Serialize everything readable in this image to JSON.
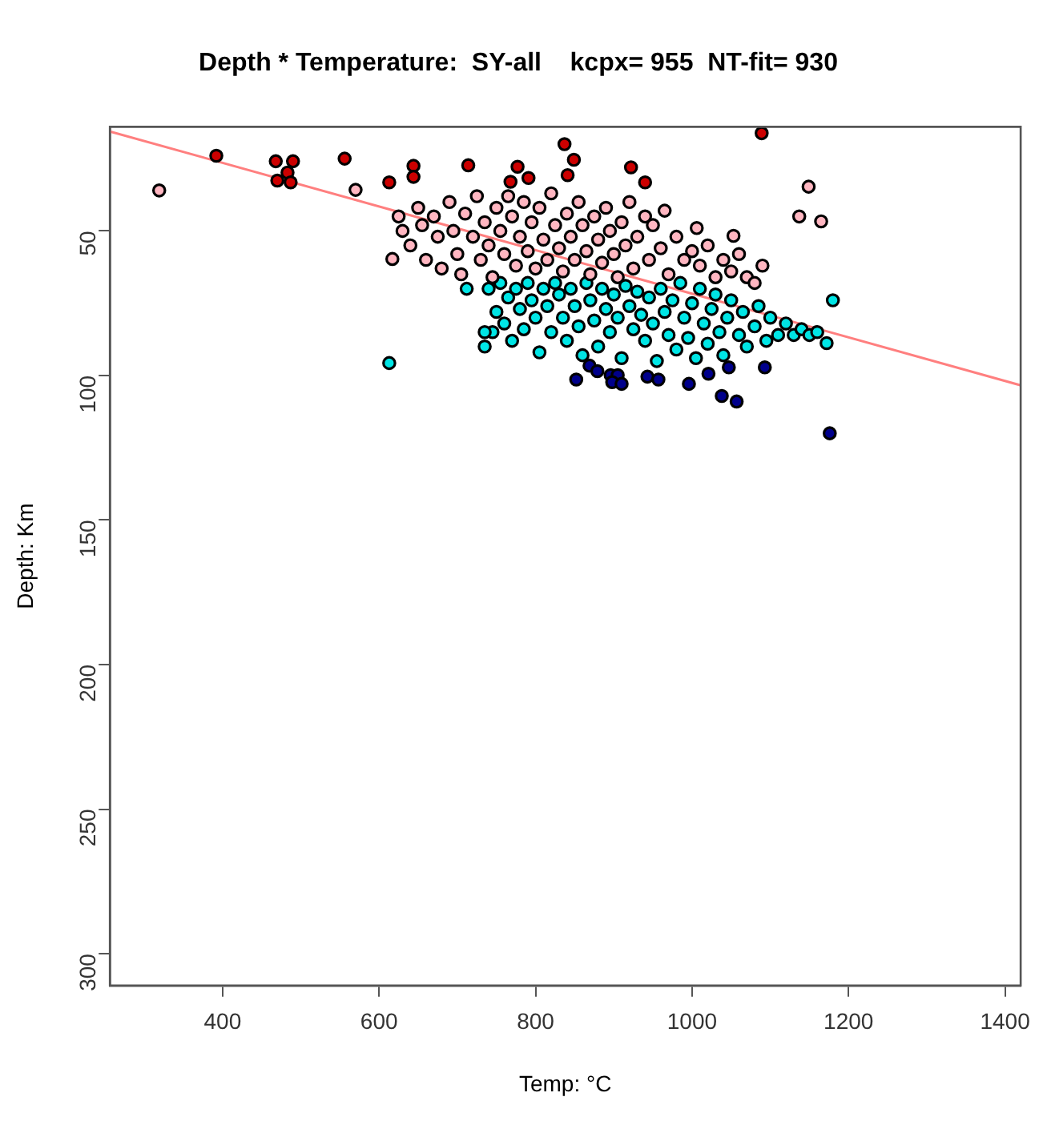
{
  "chart_data": {
    "type": "scatter",
    "title": "Depth * Temperature:  SY-all    kcpx= 955  NT-fit= 930",
    "xlabel": "Temp: °C",
    "ylabel": "Depth: Km",
    "xlim": [
      256,
      1420
    ],
    "xticks": [
      400,
      600,
      800,
      1000,
      1200,
      1400
    ],
    "ylim": [
      311,
      14
    ],
    "yticks": [
      50,
      100,
      150,
      200,
      250,
      300
    ],
    "grid": false,
    "legend": false,
    "marker": "circle",
    "series": [
      {
        "color": "#cc0000",
        "x": [
          392,
          468,
          490,
          483,
          470,
          487,
          556,
          644,
          644,
          613,
          714,
          777,
          791,
          768,
          837,
          849,
          841,
          922,
          940,
          1089
        ],
        "values": [
          24,
          25.9,
          25.9,
          29.8,
          32.6,
          33.2,
          25,
          27.5,
          31.3,
          33.2,
          27.3,
          27.8,
          31.7,
          33,
          20,
          25.4,
          30.7,
          28,
          33.2,
          16.2
        ]
      },
      {
        "color": "#ffb6c1",
        "x": [
          319,
          570,
          617,
          1149,
          1137,
          1165,
          1006,
          1053,
          625,
          630,
          640,
          650,
          655,
          660,
          670,
          675,
          680,
          690,
          695,
          700,
          705,
          710,
          720,
          725,
          730,
          735,
          740,
          745,
          750,
          755,
          760,
          765,
          770,
          775,
          780,
          785,
          790,
          795,
          800,
          805,
          810,
          815,
          820,
          825,
          830,
          835,
          840,
          845,
          850,
          855,
          860,
          865,
          870,
          875,
          880,
          885,
          890,
          895,
          900,
          905,
          910,
          915,
          920,
          925,
          930,
          940,
          945,
          950,
          960,
          965,
          970,
          980,
          990,
          1000,
          1010,
          1020,
          1030,
          1040,
          1050,
          1060,
          1070,
          1080,
          1090
        ],
        "values": [
          36,
          35.8,
          59.7,
          34.7,
          45,
          46.7,
          49,
          51.7,
          45,
          50,
          55,
          42,
          48,
          60,
          45,
          52,
          63,
          40,
          50,
          58,
          65,
          44,
          52,
          38,
          60,
          47,
          55,
          66,
          42,
          50,
          58,
          38,
          45,
          62,
          52,
          40,
          57,
          47,
          63,
          42,
          53,
          60,
          37,
          48,
          56,
          64,
          44,
          52,
          60,
          40,
          48,
          57,
          65,
          45,
          53,
          61,
          42,
          50,
          58,
          66,
          47,
          55,
          40,
          63,
          52,
          45,
          60,
          48,
          56,
          43,
          65,
          52,
          60,
          57,
          62,
          55,
          66,
          60,
          64,
          58,
          66,
          68,
          62
        ]
      },
      {
        "color": "#00e5e5",
        "x": [
          735,
          740,
          745,
          750,
          755,
          760,
          765,
          770,
          775,
          780,
          785,
          790,
          795,
          800,
          805,
          810,
          815,
          820,
          825,
          830,
          835,
          840,
          845,
          850,
          855,
          860,
          865,
          870,
          875,
          880,
          885,
          890,
          895,
          900,
          905,
          910,
          915,
          920,
          925,
          930,
          935,
          940,
          945,
          950,
          955,
          960,
          965,
          970,
          975,
          980,
          985,
          990,
          995,
          1000,
          1005,
          1010,
          1015,
          1020,
          1025,
          1030,
          1035,
          1040,
          1045,
          1050,
          1060,
          1065,
          1070,
          1080,
          1085,
          1095,
          1100,
          1110,
          1120,
          1130,
          1140,
          1150,
          1160,
          1172,
          1180,
          613,
          735,
          712
        ],
        "values": [
          90,
          70,
          85,
          78,
          68,
          82,
          73,
          88,
          70,
          77,
          84,
          68,
          74,
          80,
          92,
          70,
          76,
          85,
          68,
          72,
          80,
          88,
          70,
          76,
          83,
          93,
          68,
          74,
          81,
          90,
          70,
          77,
          85,
          72,
          80,
          94,
          69,
          76,
          84,
          71,
          79,
          88,
          73,
          82,
          95,
          70,
          78,
          86,
          74,
          91,
          68,
          80,
          87,
          75,
          94,
          70,
          82,
          89,
          77,
          72,
          85,
          93,
          80,
          74,
          86,
          78,
          90,
          83,
          76,
          88,
          80,
          86,
          82,
          86,
          84,
          86,
          85,
          88.8,
          74,
          95.7,
          85,
          70
        ]
      },
      {
        "color": "#00008b",
        "x": [
          852,
          869,
          879,
          896,
          905,
          898,
          910,
          943,
          957,
          996,
          1021,
          1047,
          1093,
          1038,
          1057,
          1176
        ],
        "values": [
          101.4,
          96.6,
          98.5,
          99.9,
          99.9,
          102.3,
          102.9,
          100.4,
          101.4,
          102.9,
          99.4,
          97.2,
          97.2,
          107.1,
          109,
          120
        ]
      },
      {
        "type": "line",
        "marker": "none",
        "color": "#ff7f7f",
        "x": [
          256,
          1420
        ],
        "values": [
          15.6,
          103.4
        ]
      }
    ]
  }
}
